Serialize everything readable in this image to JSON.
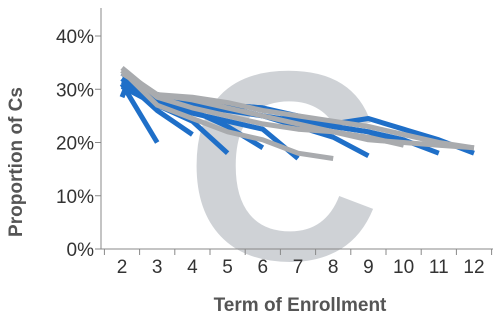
{
  "chart_data": {
    "type": "line",
    "watermark": "C",
    "xlabel": "Term of Enrollment",
    "ylabel": "Proportion of Cs",
    "x_ticks": [
      "2",
      "3",
      "4",
      "5",
      "6",
      "7",
      "8",
      "9",
      "10",
      "11",
      "12"
    ],
    "y_ticks": [
      "0%",
      "10%",
      "20%",
      "30%",
      "40%"
    ],
    "xlim": [
      1.5,
      12.5
    ],
    "ylim": [
      0,
      0.45
    ],
    "grid": false,
    "legend": "none",
    "colors": {
      "blue": "#1f6fc8",
      "gray": "#a9abae",
      "watermark": "#c7cbd0"
    },
    "series": [
      {
        "color": "blue",
        "points": [
          [
            2,
            0.285
          ],
          [
            2.15,
            0.31
          ]
        ]
      },
      {
        "color": "blue",
        "points": [
          [
            2,
            0.31
          ],
          [
            3,
            0.2
          ]
        ]
      },
      {
        "color": "blue",
        "points": [
          [
            2,
            0.32
          ],
          [
            3,
            0.26
          ],
          [
            4,
            0.215
          ]
        ]
      },
      {
        "color": "blue",
        "points": [
          [
            2,
            0.305
          ],
          [
            3,
            0.27
          ],
          [
            4,
            0.24
          ],
          [
            5,
            0.18
          ]
        ]
      },
      {
        "color": "blue",
        "points": [
          [
            2,
            0.31
          ],
          [
            3,
            0.28
          ],
          [
            4,
            0.26
          ],
          [
            5,
            0.23
          ],
          [
            6,
            0.19
          ]
        ]
      },
      {
        "color": "blue",
        "points": [
          [
            2,
            0.31
          ],
          [
            3,
            0.275
          ],
          [
            4,
            0.255
          ],
          [
            5,
            0.24
          ],
          [
            6,
            0.225
          ],
          [
            7,
            0.17
          ]
        ]
      },
      {
        "color": "blue",
        "points": [
          [
            2,
            0.32
          ],
          [
            3,
            0.29
          ],
          [
            4,
            0.275
          ],
          [
            5,
            0.265
          ],
          [
            6,
            0.25
          ],
          [
            7,
            0.23
          ],
          [
            8,
            0.21
          ],
          [
            9,
            0.175
          ]
        ]
      },
      {
        "color": "blue",
        "points": [
          [
            2,
            0.315
          ],
          [
            3,
            0.285
          ],
          [
            4,
            0.28
          ],
          [
            5,
            0.27
          ],
          [
            6,
            0.265
          ],
          [
            7,
            0.245
          ],
          [
            8,
            0.23
          ],
          [
            9,
            0.22
          ],
          [
            10,
            0.195
          ]
        ]
      },
      {
        "color": "blue",
        "points": [
          [
            2,
            0.31
          ],
          [
            3,
            0.29
          ],
          [
            4,
            0.275
          ],
          [
            5,
            0.27
          ],
          [
            6,
            0.265
          ],
          [
            7,
            0.25
          ],
          [
            8,
            0.235
          ],
          [
            9,
            0.245
          ],
          [
            10,
            0.225
          ],
          [
            11,
            0.205
          ],
          [
            12,
            0.18
          ]
        ]
      },
      {
        "color": "blue",
        "points": [
          [
            2,
            0.33
          ],
          [
            3,
            0.28
          ],
          [
            4,
            0.27
          ],
          [
            5,
            0.26
          ],
          [
            6,
            0.25
          ],
          [
            7,
            0.24
          ],
          [
            8,
            0.23
          ],
          [
            9,
            0.22
          ],
          [
            10,
            0.205
          ],
          [
            11,
            0.18
          ]
        ]
      },
      {
        "color": "gray",
        "points": [
          [
            2,
            0.335
          ],
          [
            3,
            0.27
          ],
          [
            4,
            0.245
          ],
          [
            5,
            0.22
          ],
          [
            6,
            0.205
          ],
          [
            7,
            0.18
          ],
          [
            8,
            0.17
          ]
        ]
      },
      {
        "color": "gray",
        "points": [
          [
            2,
            0.34
          ],
          [
            3,
            0.285
          ],
          [
            4,
            0.265
          ],
          [
            5,
            0.25
          ],
          [
            6,
            0.235
          ],
          [
            7,
            0.225
          ],
          [
            8,
            0.22
          ],
          [
            9,
            0.21
          ],
          [
            10,
            0.195
          ]
        ]
      },
      {
        "color": "gray",
        "points": [
          [
            2,
            0.335
          ],
          [
            3,
            0.29
          ],
          [
            4,
            0.28
          ],
          [
            5,
            0.265
          ],
          [
            6,
            0.25
          ],
          [
            7,
            0.235
          ],
          [
            8,
            0.22
          ],
          [
            9,
            0.205
          ],
          [
            10,
            0.2
          ],
          [
            11,
            0.195
          ],
          [
            12,
            0.19
          ]
        ]
      },
      {
        "color": "gray",
        "points": [
          [
            2,
            0.33
          ],
          [
            3,
            0.29
          ],
          [
            4,
            0.285
          ],
          [
            5,
            0.275
          ],
          [
            6,
            0.26
          ],
          [
            7,
            0.25
          ],
          [
            8,
            0.24
          ],
          [
            9,
            0.23
          ],
          [
            10,
            0.215
          ],
          [
            11,
            0.2
          ],
          [
            12,
            0.19
          ]
        ]
      }
    ]
  }
}
